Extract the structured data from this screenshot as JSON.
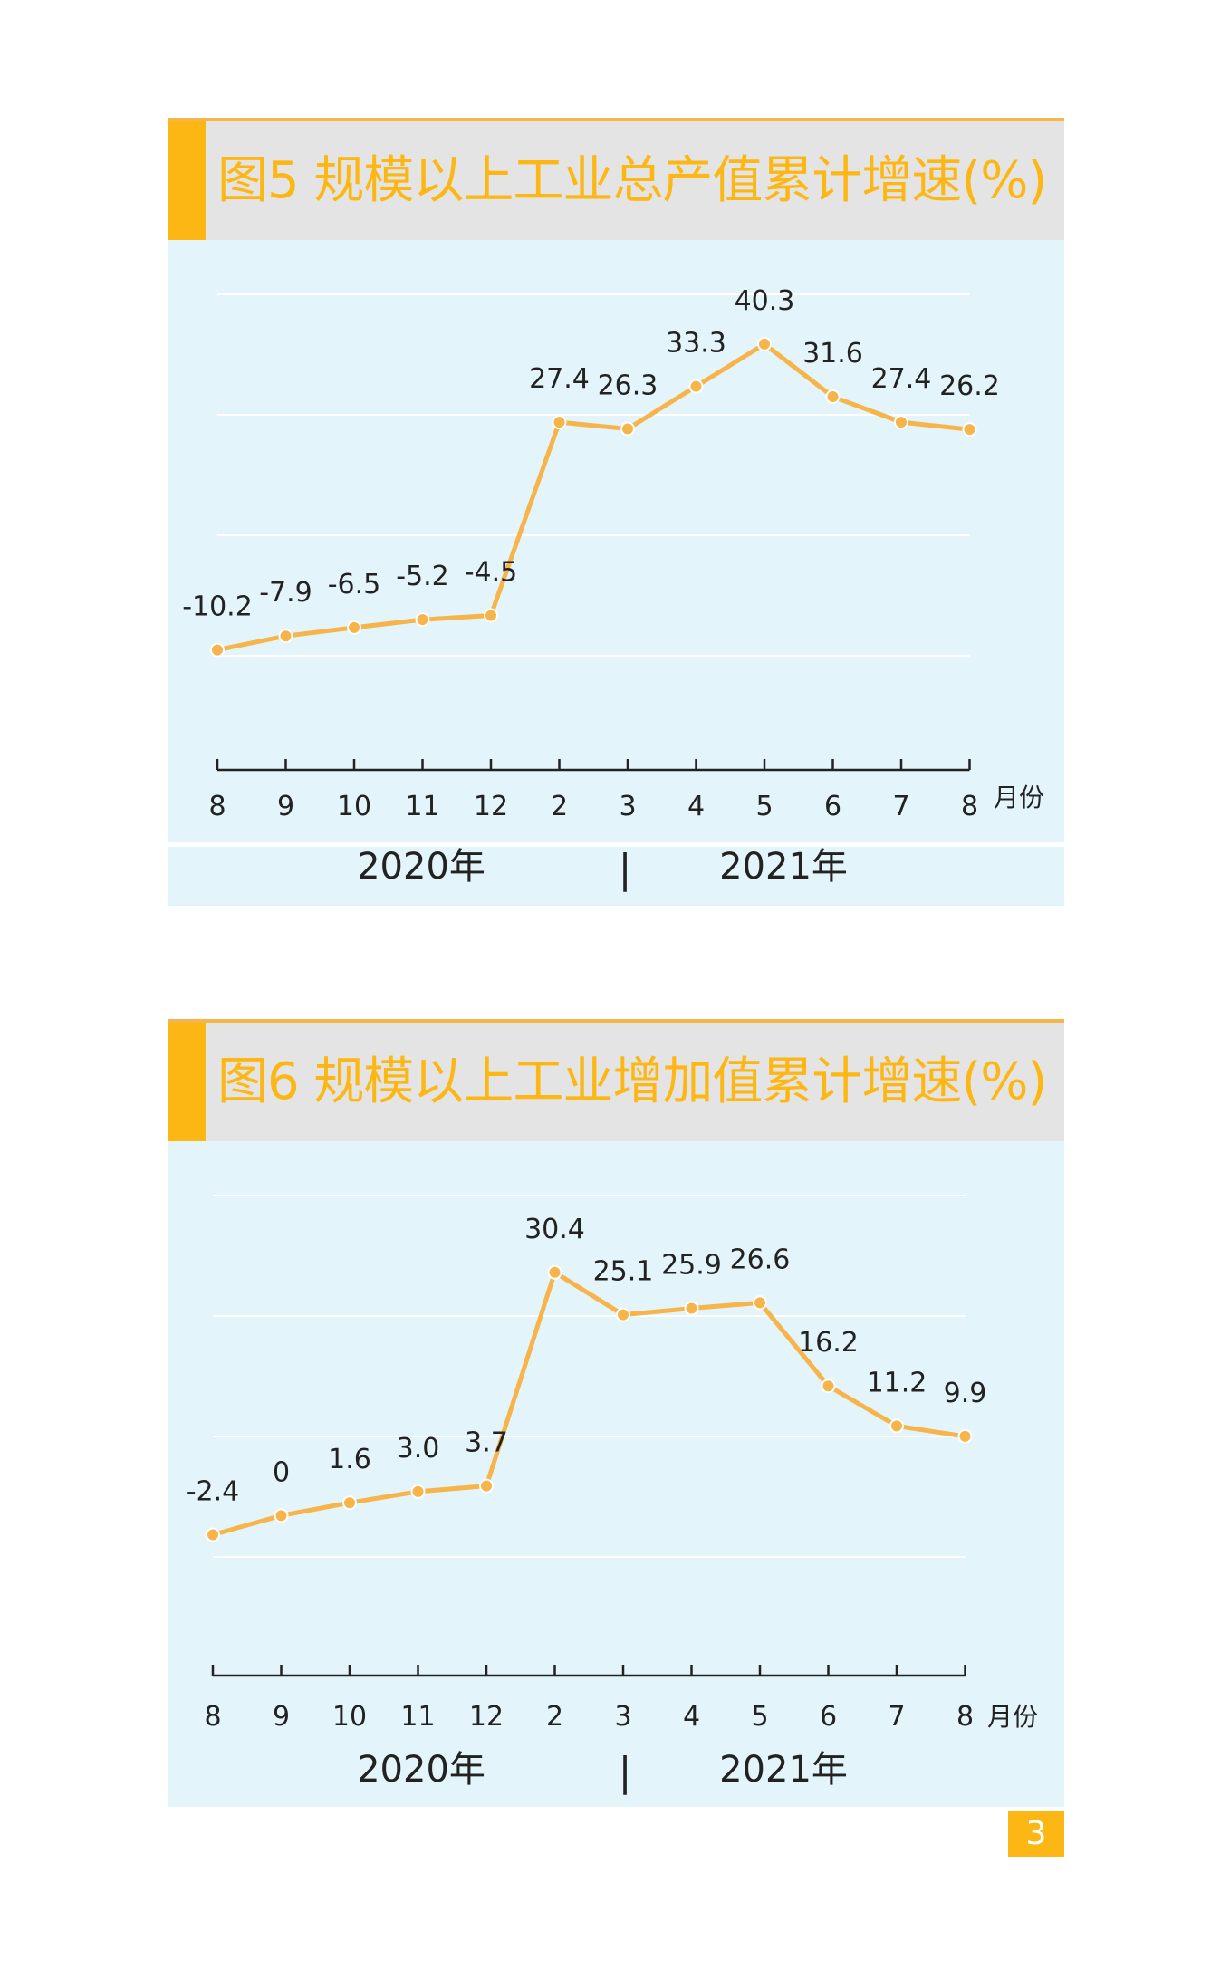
{
  "page_number": "3",
  "charts_meta": [
    {
      "title": "图5 规模以上工业总产值累计增速(%)",
      "x_unit": "月份",
      "year_left": "2020年",
      "year_sep": "|",
      "year_right": "2021年"
    },
    {
      "title": "图6 规模以上工业增加值累计增速(%)",
      "x_unit": "月份",
      "year_left": "2020年",
      "year_sep": "|",
      "year_right": "2021年"
    }
  ],
  "colors": {
    "accent": "#fdb714",
    "line": "#f6b44a",
    "plot_bg": "#e3f4fa",
    "title_bg": "#e4e4e4",
    "grid": "#ffffff"
  },
  "chart_data": [
    {
      "type": "line",
      "title": "图5 规模以上工业总产值累计增速(%)",
      "xlabel": "月份",
      "ylabel": "",
      "categories": [
        "8",
        "9",
        "10",
        "11",
        "12",
        "2",
        "3",
        "4",
        "5",
        "6",
        "7",
        "8"
      ],
      "category_groups": [
        {
          "label": "2020年",
          "count": 5
        },
        {
          "label": "2021年",
          "count": 7
        }
      ],
      "values": [
        -10.2,
        -7.9,
        -6.5,
        -5.2,
        -4.5,
        27.4,
        26.3,
        33.3,
        40.3,
        31.6,
        27.4,
        26.2
      ],
      "data_labels": [
        "-10.2",
        "-7.9",
        "-6.5",
        "-5.2",
        "-4.5",
        "27.4",
        "26.3",
        "33.3",
        "40.3",
        "31.6",
        "27.4",
        "26.2"
      ],
      "ylim": [
        -30,
        50
      ],
      "grid": true,
      "legend": "none"
    },
    {
      "type": "line",
      "title": "图6 规模以上工业增加值累计增速(%)",
      "xlabel": "月份",
      "ylabel": "",
      "categories": [
        "8",
        "9",
        "10",
        "11",
        "12",
        "2",
        "3",
        "4",
        "5",
        "6",
        "7",
        "8"
      ],
      "category_groups": [
        {
          "label": "2020年",
          "count": 5
        },
        {
          "label": "2021年",
          "count": 7
        }
      ],
      "values": [
        -2.4,
        0,
        1.6,
        3.0,
        3.7,
        30.4,
        25.1,
        25.9,
        26.6,
        16.2,
        11.2,
        9.9
      ],
      "data_labels": [
        "-2.4",
        "0",
        "1.6",
        "3.0",
        "3.7",
        "30.4",
        "25.1",
        "25.9",
        "26.6",
        "16.2",
        "11.2",
        "9.9"
      ],
      "ylim": [
        -20,
        40
      ],
      "grid": true,
      "legend": "none"
    }
  ]
}
